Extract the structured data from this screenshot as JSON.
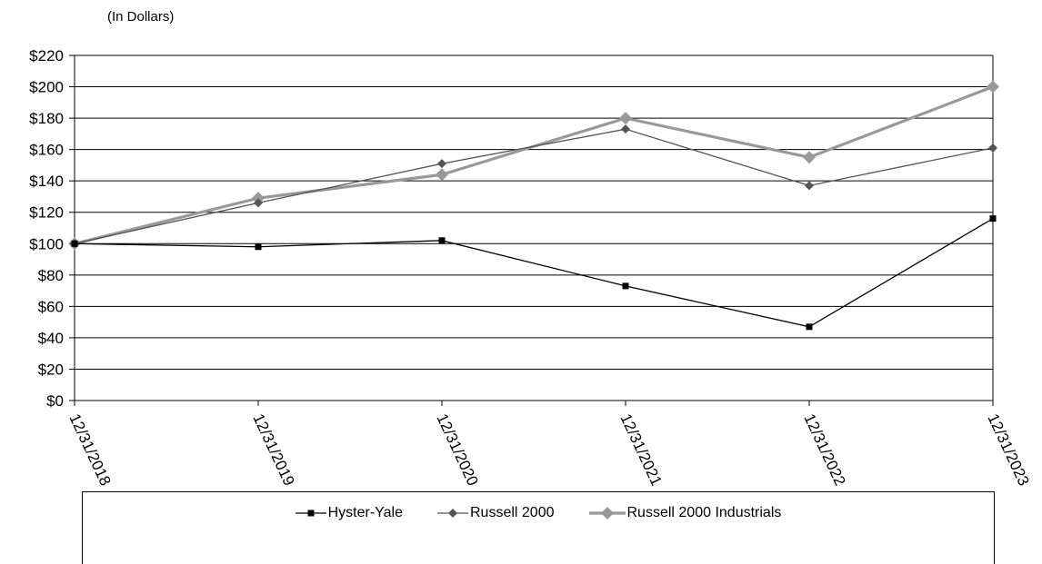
{
  "chart_data": {
    "type": "line",
    "unit_label": "(In Dollars)",
    "categories": [
      "12/31/2018",
      "12/31/2019",
      "12/31/2020",
      "12/31/2021",
      "12/31/2022",
      "12/31/2023"
    ],
    "y_tick_labels": [
      "$0",
      "$20",
      "$40",
      "$60",
      "$80",
      "$100",
      "$120",
      "$140",
      "$160",
      "$180",
      "$200",
      "$220"
    ],
    "ylim": [
      0,
      220
    ],
    "grid": true,
    "legend_position": "bottom",
    "series": [
      {
        "name": "Hyster-Yale",
        "values": [
          100,
          98,
          102,
          73,
          47,
          116
        ],
        "color": "#000000",
        "marker": "square"
      },
      {
        "name": "Russell 2000",
        "values": [
          100,
          126,
          151,
          173,
          137,
          161
        ],
        "color": "#555555",
        "marker": "diamond-small"
      },
      {
        "name": "Russell 2000 Industrials",
        "values": [
          100,
          129,
          144,
          180,
          155,
          200
        ],
        "color": "#999999",
        "marker": "diamond-large"
      }
    ]
  }
}
